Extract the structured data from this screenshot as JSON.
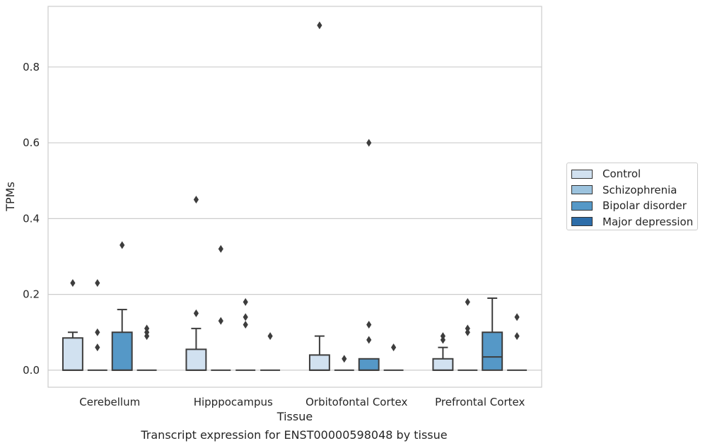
{
  "chart_data": {
    "type": "box",
    "caption": "Transcript expression for ENST00000598048 by tissue",
    "xlabel": "Tissue",
    "ylabel": "TPMs",
    "ylim": [
      -0.045,
      0.96
    ],
    "yticks": [
      0.0,
      0.2,
      0.4,
      0.6,
      0.8
    ],
    "ytick_labels": [
      "0.0",
      "0.2",
      "0.4",
      "0.6",
      "0.8"
    ],
    "grid": "horizontal",
    "legend_position": "right",
    "categories": [
      "Cerebellum",
      "Hipppocampus",
      "Orbitofontal Cortex",
      "Prefrontal Cortex"
    ],
    "series": [
      {
        "name": "Control",
        "color": "#d1e1f0",
        "boxes": [
          {
            "q1": 0.0,
            "median": 0.0,
            "q3": 0.085,
            "whisker_low": 0.0,
            "whisker_high": 0.1,
            "outliers": [
              0.23
            ]
          },
          {
            "q1": 0.0,
            "median": 0.0,
            "q3": 0.055,
            "whisker_low": 0.0,
            "whisker_high": 0.11,
            "outliers": [
              0.15,
              0.45
            ]
          },
          {
            "q1": 0.0,
            "median": 0.0,
            "q3": 0.04,
            "whisker_low": 0.0,
            "whisker_high": 0.09,
            "outliers": [
              0.91
            ]
          },
          {
            "q1": 0.0,
            "median": 0.0,
            "q3": 0.03,
            "whisker_low": 0.0,
            "whisker_high": 0.06,
            "outliers": [
              0.08,
              0.09
            ]
          }
        ]
      },
      {
        "name": "Schizophrenia",
        "color": "#9cc3de",
        "boxes": [
          {
            "q1": 0.0,
            "median": 0.0,
            "q3": 0.0,
            "whisker_low": 0.0,
            "whisker_high": 0.0,
            "outliers": [
              0.06,
              0.1,
              0.23
            ]
          },
          {
            "q1": 0.0,
            "median": 0.0,
            "q3": 0.0,
            "whisker_low": 0.0,
            "whisker_high": 0.0,
            "outliers": [
              0.13,
              0.32
            ]
          },
          {
            "q1": 0.0,
            "median": 0.0,
            "q3": 0.0,
            "whisker_low": 0.0,
            "whisker_high": 0.0,
            "outliers": [
              0.03
            ]
          },
          {
            "q1": 0.0,
            "median": 0.0,
            "q3": 0.0,
            "whisker_low": 0.0,
            "whisker_high": 0.0,
            "outliers": [
              0.1,
              0.11,
              0.18
            ]
          }
        ]
      },
      {
        "name": "Bipolar disorder",
        "color": "#5598c7",
        "boxes": [
          {
            "q1": 0.0,
            "median": 0.0,
            "q3": 0.1,
            "whisker_low": 0.0,
            "whisker_high": 0.16,
            "outliers": [
              0.33
            ]
          },
          {
            "q1": 0.0,
            "median": 0.0,
            "q3": 0.0,
            "whisker_low": 0.0,
            "whisker_high": 0.0,
            "outliers": [
              0.12,
              0.14,
              0.18
            ]
          },
          {
            "q1": 0.0,
            "median": 0.0,
            "q3": 0.03,
            "whisker_low": 0.0,
            "whisker_high": 0.03,
            "outliers": [
              0.08,
              0.12,
              0.6
            ]
          },
          {
            "q1": 0.0,
            "median": 0.035,
            "q3": 0.1,
            "whisker_low": 0.0,
            "whisker_high": 0.19,
            "outliers": []
          }
        ]
      },
      {
        "name": "Major depression",
        "color": "#2d6da9",
        "boxes": [
          {
            "q1": 0.0,
            "median": 0.0,
            "q3": 0.0,
            "whisker_low": 0.0,
            "whisker_high": 0.0,
            "outliers": [
              0.09,
              0.1,
              0.11
            ]
          },
          {
            "q1": 0.0,
            "median": 0.0,
            "q3": 0.0,
            "whisker_low": 0.0,
            "whisker_high": 0.0,
            "outliers": [
              0.09
            ]
          },
          {
            "q1": 0.0,
            "median": 0.0,
            "q3": 0.0,
            "whisker_low": 0.0,
            "whisker_high": 0.0,
            "outliers": [
              0.06
            ]
          },
          {
            "q1": 0.0,
            "median": 0.0,
            "q3": 0.0,
            "whisker_low": 0.0,
            "whisker_high": 0.0,
            "outliers": [
              0.09,
              0.14
            ]
          }
        ]
      }
    ]
  }
}
